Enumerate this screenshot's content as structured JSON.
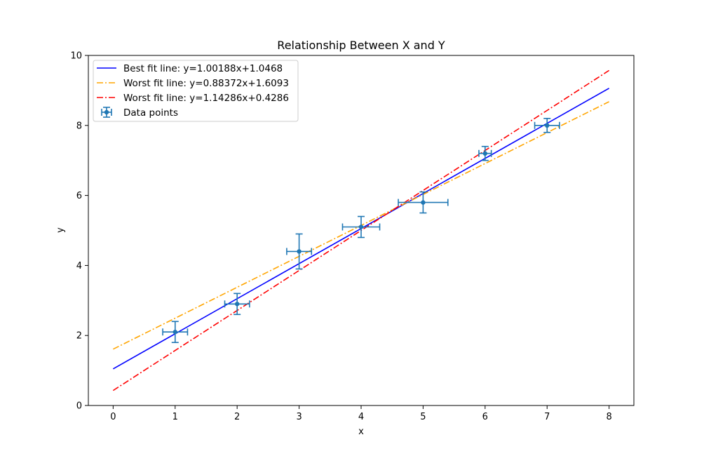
{
  "chart_data": {
    "type": "scatter",
    "title": "Relationship Between X and Y",
    "xlabel": "x",
    "ylabel": "y",
    "xlim": [
      -0.4,
      8.4
    ],
    "ylim": [
      0,
      10
    ],
    "xticks": [
      0,
      1,
      2,
      3,
      4,
      5,
      6,
      7,
      8
    ],
    "yticks": [
      0,
      2,
      4,
      6,
      8,
      10
    ],
    "grid": false,
    "legend_position": "upper-left",
    "points": {
      "name": "Data points",
      "color": "#1f77b4",
      "x": [
        1,
        2,
        3,
        4,
        5,
        6,
        7
      ],
      "y": [
        2.1,
        2.9,
        4.4,
        5.1,
        5.8,
        7.2,
        8.0
      ],
      "xerr": [
        0.2,
        0.2,
        0.2,
        0.3,
        0.4,
        0.1,
        0.2
      ],
      "yerr": [
        0.3,
        0.3,
        0.5,
        0.3,
        0.3,
        0.2,
        0.2
      ]
    },
    "lines": [
      {
        "name": "Best fit line: y=1.00188x+1.0468",
        "slope": 1.00188,
        "intercept": 1.0468,
        "x_range": [
          0,
          8
        ],
        "color": "#0000ff",
        "style": "solid"
      },
      {
        "name": "Worst fit line: y=0.88372x+1.6093",
        "slope": 0.88372,
        "intercept": 1.6093,
        "x_range": [
          0,
          8
        ],
        "color": "#ffa500",
        "style": "dashdot"
      },
      {
        "name": "Worst fit line: y=1.14286x+0.4286",
        "slope": 1.14286,
        "intercept": 0.4286,
        "x_range": [
          0,
          8
        ],
        "color": "#ff0000",
        "style": "dashdot"
      }
    ]
  }
}
